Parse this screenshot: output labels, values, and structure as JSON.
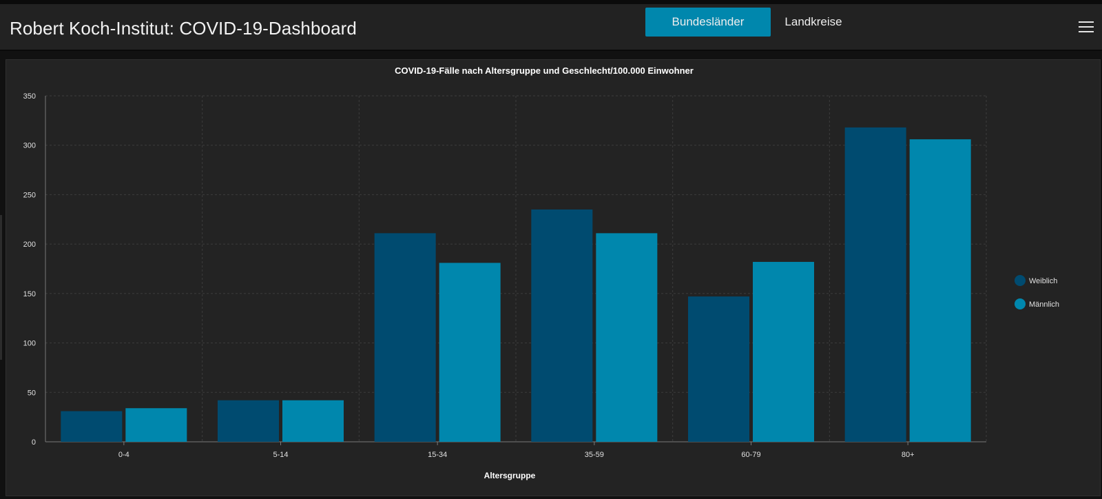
{
  "header": {
    "title": "Robert Koch-Institut: COVID-19-Dashboard",
    "tabs": [
      {
        "label": "Bundesländer",
        "active": true
      },
      {
        "label": "Landkreise",
        "active": false
      }
    ],
    "menu_icon": "hamburger-menu-icon"
  },
  "colors": {
    "weiblich": "#004b70",
    "maennlich": "#0087ad",
    "accent": "#0087ad",
    "background": "#232323"
  },
  "chart_data": {
    "type": "bar",
    "title": "COVID-19-Fälle nach Altersgruppe und Geschlecht/100.000 Einwohner",
    "xlabel": "Altersgruppe",
    "ylabel": "",
    "categories": [
      "0-4",
      "5-14",
      "15-34",
      "35-59",
      "60-79",
      "80+"
    ],
    "series": [
      {
        "name": "Weiblich",
        "values": [
          31,
          42,
          211,
          235,
          147,
          318
        ]
      },
      {
        "name": "Männlich",
        "values": [
          34,
          42,
          181,
          211,
          182,
          306
        ]
      }
    ],
    "ylim": [
      0,
      350
    ],
    "yticks": [
      0,
      50,
      100,
      150,
      200,
      250,
      300,
      350
    ],
    "grid": true,
    "legend_position": "right"
  }
}
